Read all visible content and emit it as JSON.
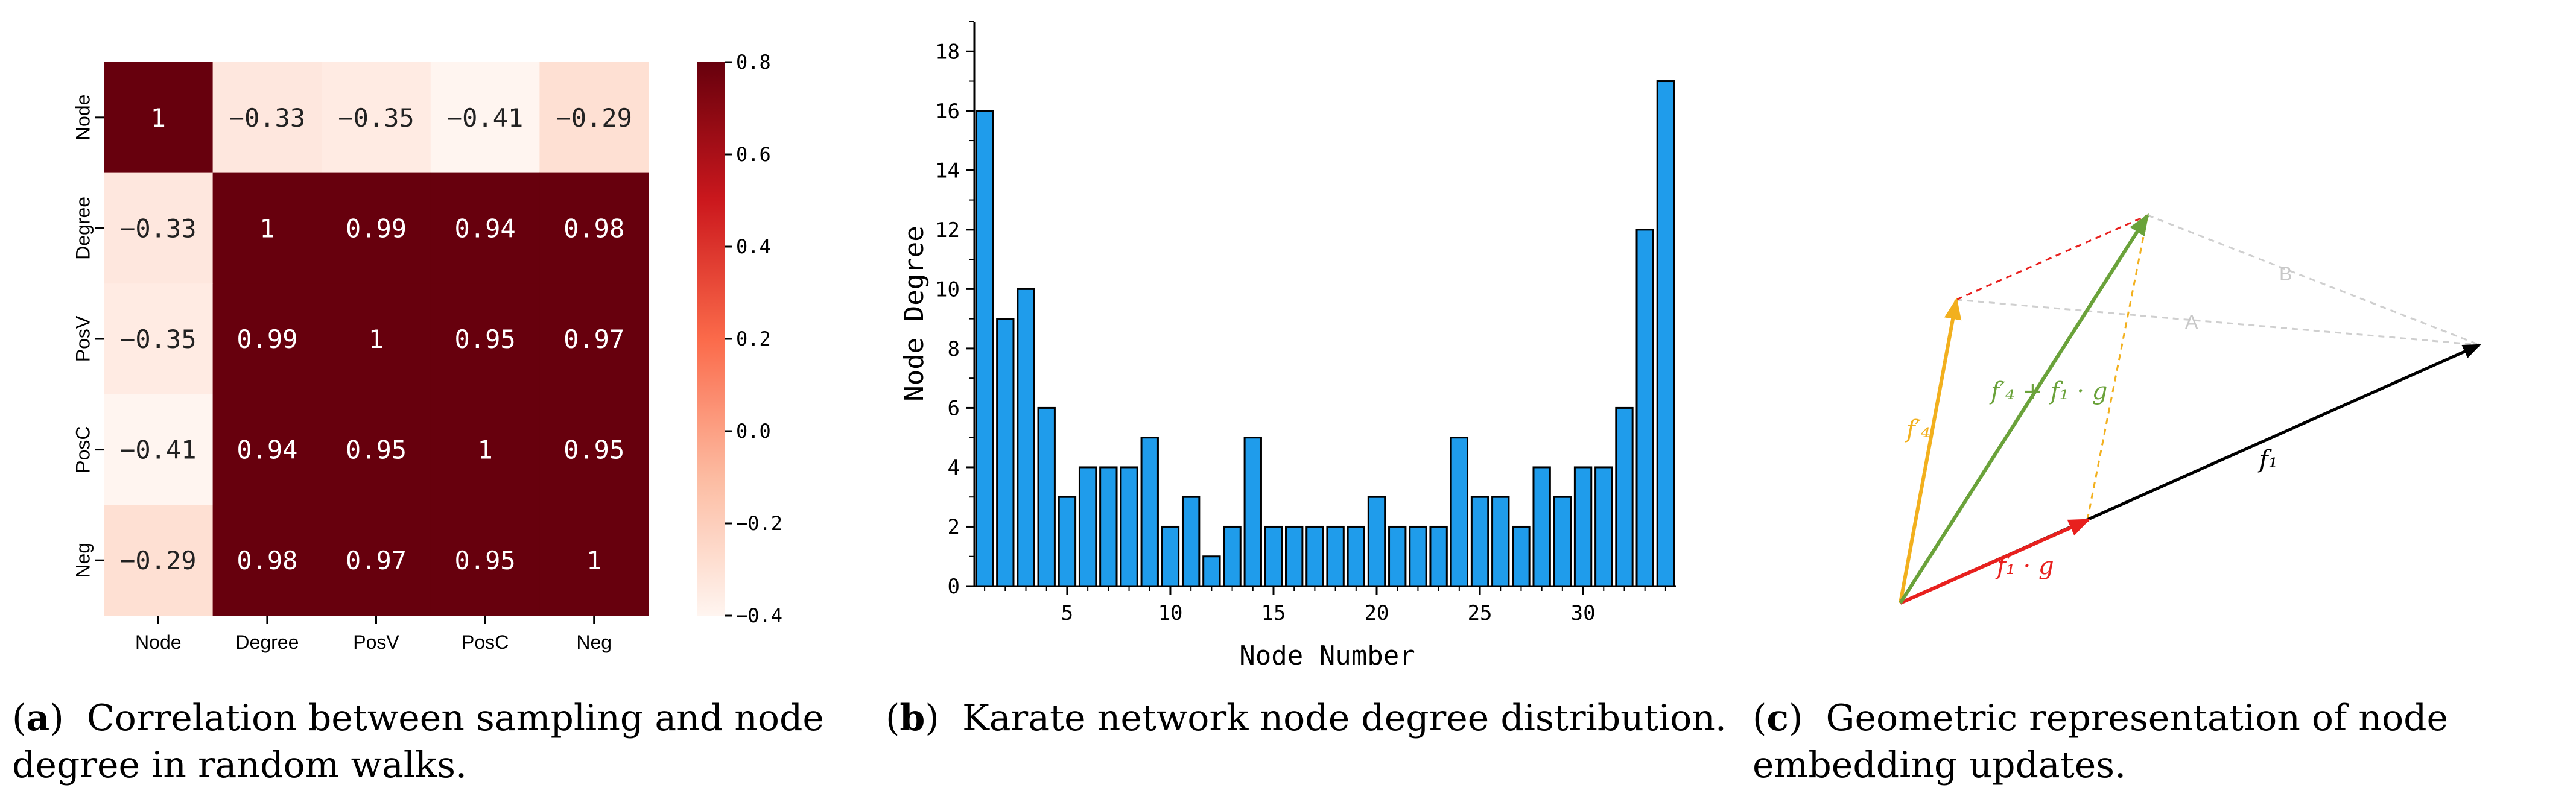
{
  "chart_data": [
    {
      "type": "heatmap",
      "panel_label": "a",
      "caption": "Correlation between sampling and node degree in random walks.",
      "rows": [
        "Node",
        "Degree",
        "PosV",
        "PosC",
        "Neg"
      ],
      "cols": [
        "Node",
        "Degree",
        "PosV",
        "PosC",
        "Neg"
      ],
      "values": [
        [
          1,
          -0.33,
          -0.35,
          -0.41,
          -0.29
        ],
        [
          -0.33,
          1,
          0.99,
          0.94,
          0.98
        ],
        [
          -0.35,
          0.99,
          1,
          0.95,
          0.97
        ],
        [
          -0.41,
          0.94,
          0.95,
          1,
          0.95
        ],
        [
          -0.29,
          0.98,
          0.97,
          0.95,
          1
        ]
      ],
      "value_labels": [
        [
          "1",
          "−0.33",
          "−0.35",
          "−0.41",
          "−0.29"
        ],
        [
          "−0.33",
          "1",
          "0.99",
          "0.94",
          "0.98"
        ],
        [
          "−0.35",
          "0.99",
          "1",
          "0.95",
          "0.97"
        ],
        [
          "−0.41",
          "0.94",
          "0.95",
          "1",
          "0.95"
        ],
        [
          "−0.29",
          "0.98",
          "0.97",
          "0.95",
          "1"
        ]
      ],
      "colorbar": {
        "range": [
          -0.4,
          0.8
        ],
        "ticks": [
          0.8,
          0.6,
          0.4,
          0.2,
          0.0,
          -0.2,
          -0.4
        ],
        "tick_labels": [
          "0.8",
          "0.6",
          "0.4",
          "0.2",
          "0.0",
          "−0.2",
          "−0.4"
        ],
        "low_color": "#fff5f0",
        "high_color": "#67000d"
      }
    },
    {
      "type": "bar",
      "panel_label": "b",
      "caption": "Karate network node degree distribution.",
      "x": [
        1,
        2,
        3,
        4,
        5,
        6,
        7,
        8,
        9,
        10,
        11,
        12,
        13,
        14,
        15,
        16,
        17,
        18,
        19,
        20,
        21,
        22,
        23,
        24,
        25,
        26,
        27,
        28,
        29,
        30,
        31,
        32,
        33,
        34
      ],
      "values": [
        16,
        9,
        10,
        6,
        3,
        4,
        4,
        4,
        5,
        2,
        3,
        1,
        2,
        5,
        2,
        2,
        2,
        2,
        2,
        3,
        2,
        2,
        2,
        5,
        3,
        3,
        2,
        4,
        3,
        4,
        4,
        6,
        12,
        17
      ],
      "xlabel": "Node Number",
      "ylabel": "Node Degree",
      "xticks": [
        5,
        10,
        15,
        20,
        25,
        30
      ],
      "xtick_labels": [
        "5",
        "10",
        "15",
        "20",
        "25",
        "30"
      ],
      "yticks": [
        0,
        2,
        4,
        6,
        8,
        10,
        12,
        14,
        16,
        18
      ],
      "ytick_labels": [
        "0",
        "2",
        "4",
        "6",
        "8",
        "10",
        "12",
        "14",
        "16",
        "18"
      ],
      "ylim": [
        0,
        19
      ],
      "bar_color": "#1f9ceb",
      "edge_color": "#000000"
    },
    {
      "type": "diagram",
      "panel_label": "c",
      "caption": "Geometric representation of node embedding updates.",
      "labels": {
        "f4prime": "f′₄",
        "sum": "f′₄ + f₁ · g",
        "f1": "f₁",
        "f1g": "f₁ · g",
        "A": "A",
        "B": "B"
      },
      "colors": {
        "f4prime": "#f2b01e",
        "sum": "#6aa23a",
        "f1": "#000000",
        "f1g": "#e8201e",
        "guide": "#cccccc"
      }
    }
  ]
}
